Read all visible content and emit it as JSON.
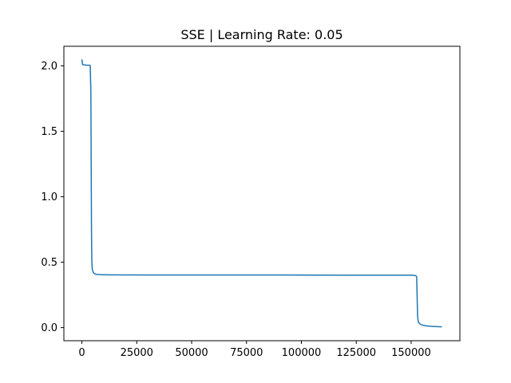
{
  "chart_data": {
    "type": "line",
    "title": "SSE | Learning Rate: 0.05",
    "xlabel": "",
    "ylabel": "",
    "xlim": [
      -8200,
      172200
    ],
    "ylim": [
      -0.1,
      2.15
    ],
    "xticks": [
      0,
      25000,
      50000,
      75000,
      100000,
      125000,
      150000
    ],
    "xtick_labels": [
      "0",
      "25000",
      "50000",
      "75000",
      "100000",
      "125000",
      "150000"
    ],
    "yticks": [
      0.0,
      0.5,
      1.0,
      1.5,
      2.0
    ],
    "ytick_labels": [
      "0.0",
      "0.5",
      "1.0",
      "1.5",
      "2.0"
    ],
    "grid": false,
    "legend": false,
    "series": [
      {
        "color": "#1f77b4",
        "x": [
          0,
          100,
          300,
          1000,
          2000,
          3000,
          3800,
          4100,
          4250,
          4400,
          4550,
          4700,
          5000,
          5500,
          6000,
          7000,
          8000,
          10000,
          15000,
          30000,
          60000,
          90000,
          120000,
          140000,
          150000,
          152000,
          152500,
          152700,
          152900,
          153100,
          153300,
          153600,
          154000,
          155000,
          157000,
          160000,
          164000
        ],
        "y": [
          2.05,
          2.04,
          2.01,
          2.008,
          2.006,
          2.005,
          2.004,
          1.8,
          1.2,
          0.7,
          0.5,
          0.45,
          0.43,
          0.415,
          0.41,
          0.406,
          0.405,
          0.404,
          0.403,
          0.402,
          0.402,
          0.402,
          0.401,
          0.401,
          0.401,
          0.398,
          0.39,
          0.25,
          0.1,
          0.06,
          0.045,
          0.035,
          0.028,
          0.02,
          0.013,
          0.009,
          0.006
        ]
      }
    ]
  }
}
